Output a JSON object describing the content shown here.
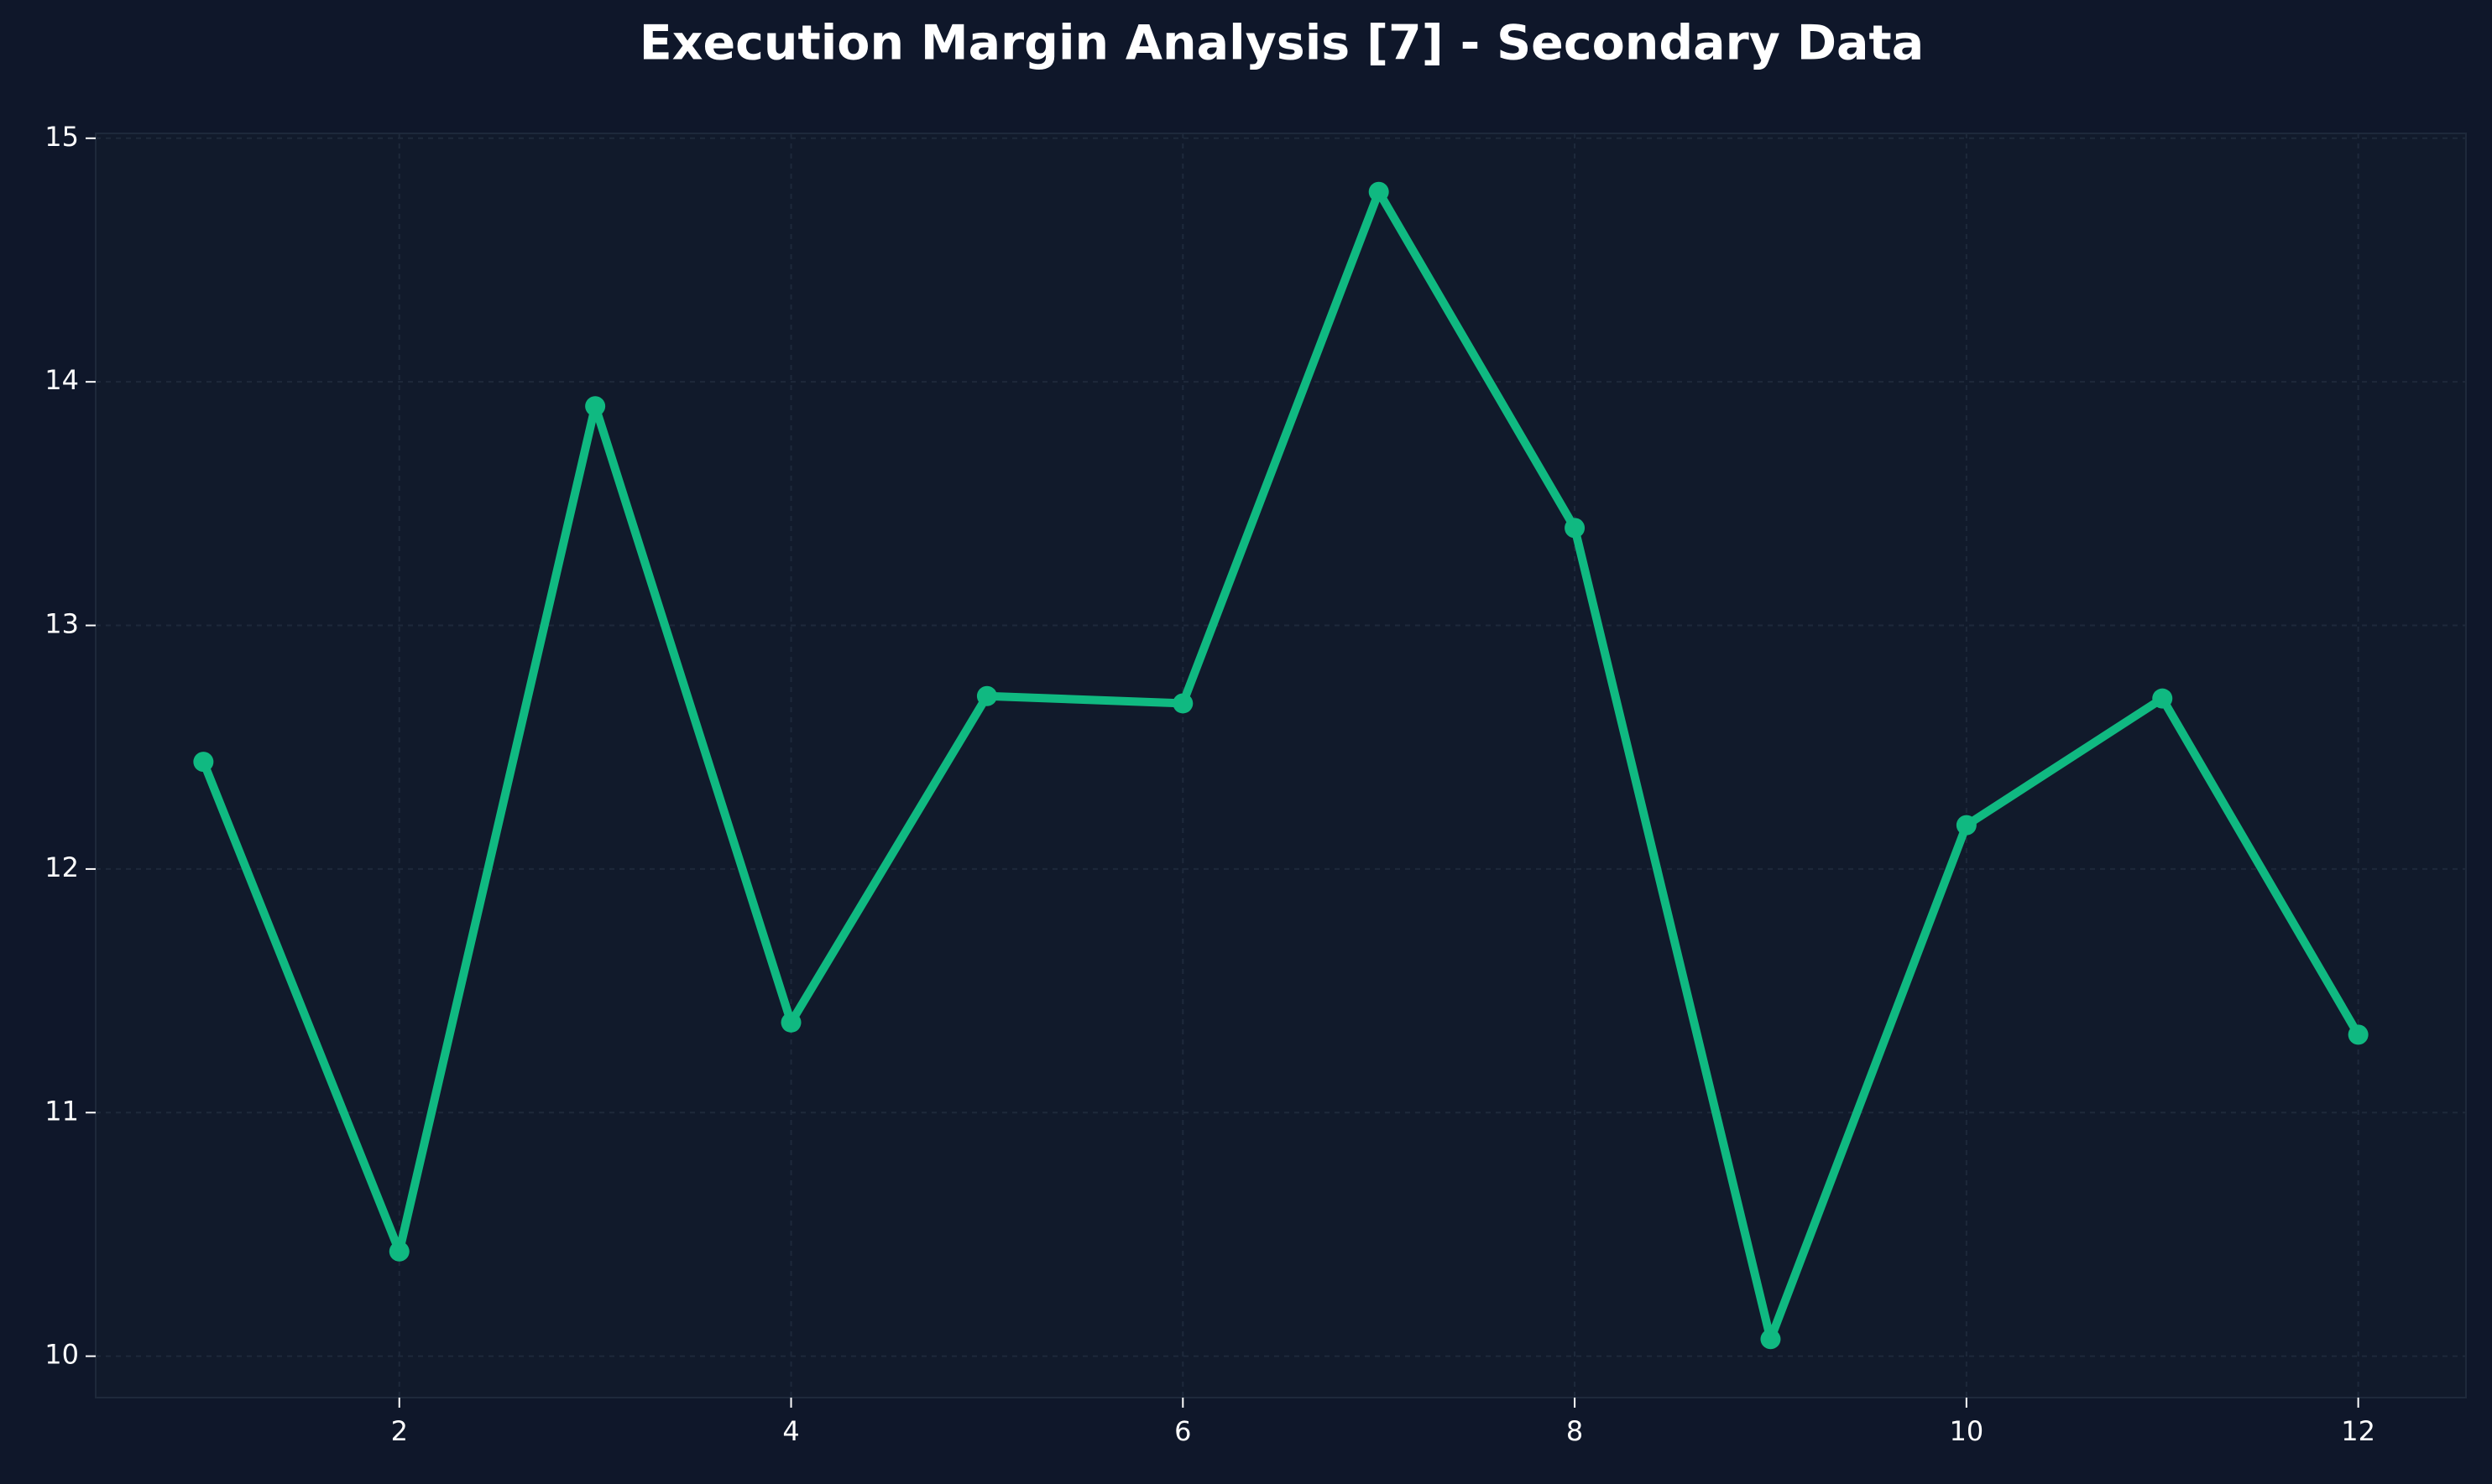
{
  "chart_data": {
    "type": "line",
    "title": "Execution Margin Analysis [7] - Secondary Data",
    "x": [
      1,
      2,
      3,
      4,
      5,
      6,
      7,
      8,
      9,
      10,
      11,
      12
    ],
    "values": [
      12.44,
      10.43,
      13.9,
      11.37,
      12.71,
      12.68,
      14.78,
      13.4,
      10.07,
      12.18,
      12.7,
      11.32
    ],
    "color": "#10b981",
    "xlim": [
      0.45,
      12.55
    ],
    "ylim": [
      9.83,
      15.02
    ],
    "xticks": [
      2,
      4,
      6,
      8,
      10,
      12
    ],
    "yticks": [
      10,
      11,
      12,
      13,
      14,
      15
    ],
    "grid": true
  }
}
